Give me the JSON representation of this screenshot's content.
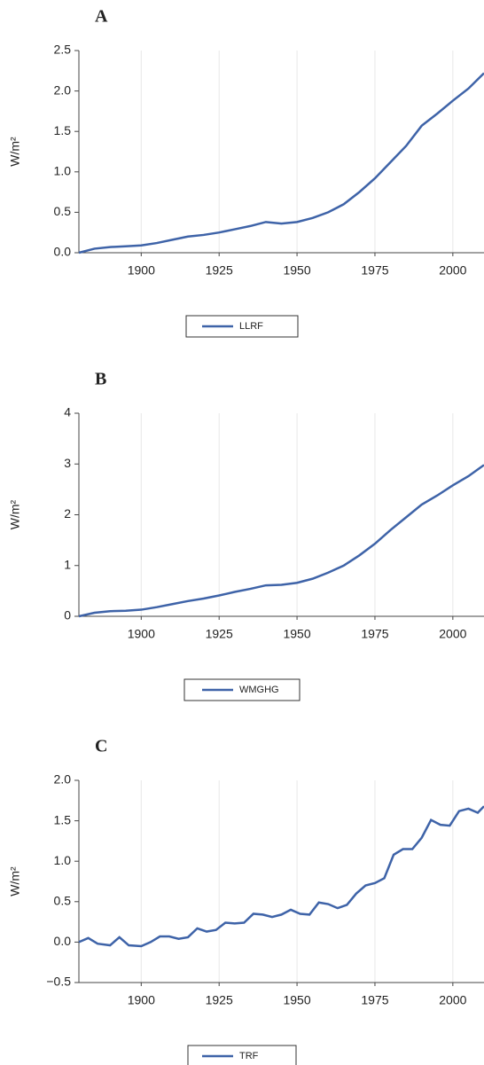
{
  "chart_data": [
    {
      "type": "line",
      "title": "A",
      "y_label": "W/m²",
      "x": [
        1880,
        1885,
        1890,
        1895,
        1900,
        1905,
        1910,
        1915,
        1920,
        1925,
        1930,
        1935,
        1940,
        1945,
        1950,
        1955,
        1960,
        1965,
        1970,
        1975,
        1980,
        1985,
        1990,
        1995,
        2000,
        2005,
        2010
      ],
      "series": [
        {
          "name": "LLRF",
          "color": "#3e63a8",
          "values": [
            0,
            0.05,
            0.07,
            0.08,
            0.09,
            0.12,
            0.16,
            0.2,
            0.22,
            0.25,
            0.29,
            0.33,
            0.38,
            0.36,
            0.38,
            0.43,
            0.5,
            0.6,
            0.75,
            0.92,
            1.12,
            1.32,
            1.57,
            1.72,
            1.88,
            2.03,
            2.22
          ]
        }
      ],
      "xlim": [
        1880,
        2010
      ],
      "xticks": [
        1900,
        1925,
        1950,
        1975,
        2000
      ],
      "ylim": [
        0,
        2.5
      ],
      "yticks": [
        {
          "value": 0,
          "label": "0.0"
        },
        {
          "value": 0.5,
          "label": "0.5"
        },
        {
          "value": 1,
          "label": "1.0"
        },
        {
          "value": 1.5,
          "label": "1.5"
        },
        {
          "value": 2,
          "label": "2.0"
        },
        {
          "value": 2.5,
          "label": "2.5"
        }
      ],
      "grid": true
    },
    {
      "type": "line",
      "title": "B",
      "y_label": "W/m²",
      "x": [
        1880,
        1885,
        1890,
        1895,
        1900,
        1905,
        1910,
        1915,
        1920,
        1925,
        1930,
        1935,
        1940,
        1945,
        1950,
        1955,
        1960,
        1965,
        1970,
        1975,
        1980,
        1985,
        1990,
        1995,
        2000,
        2005,
        2010
      ],
      "series": [
        {
          "name": "WMGHG",
          "color": "#3e63a8",
          "values": [
            0,
            0.07,
            0.1,
            0.11,
            0.13,
            0.18,
            0.24,
            0.3,
            0.35,
            0.41,
            0.48,
            0.54,
            0.61,
            0.62,
            0.66,
            0.74,
            0.86,
            1.0,
            1.2,
            1.43,
            1.7,
            1.95,
            2.2,
            2.38,
            2.58,
            2.76,
            2.98
          ]
        }
      ],
      "xlim": [
        1880,
        2010
      ],
      "xticks": [
        1900,
        1925,
        1950,
        1975,
        2000
      ],
      "ylim": [
        0,
        4
      ],
      "yticks": [
        0,
        1,
        2,
        3,
        4
      ],
      "grid": true
    },
    {
      "type": "line",
      "title": "C",
      "y_label": "W/m²",
      "x": [
        1880,
        1883,
        1886,
        1890,
        1893,
        1896,
        1900,
        1903,
        1906,
        1909,
        1912,
        1915,
        1918,
        1921,
        1924,
        1927,
        1930,
        1933,
        1936,
        1939,
        1942,
        1945,
        1948,
        1951,
        1954,
        1957,
        1960,
        1963,
        1966,
        1969,
        1972,
        1975,
        1978,
        1981,
        1984,
        1987,
        1990,
        1993,
        1996,
        1999,
        2002,
        2005,
        2008,
        2010
      ],
      "series": [
        {
          "name": "TRF",
          "color": "#3e63a8",
          "values": [
            0,
            0.05,
            -0.02,
            -0.04,
            0.06,
            -0.04,
            -0.05,
            0.0,
            0.07,
            0.07,
            0.04,
            0.06,
            0.17,
            0.13,
            0.15,
            0.24,
            0.23,
            0.24,
            0.35,
            0.34,
            0.31,
            0.34,
            0.4,
            0.35,
            0.34,
            0.49,
            0.47,
            0.42,
            0.46,
            0.6,
            0.7,
            0.73,
            0.79,
            1.08,
            1.15,
            1.15,
            1.29,
            1.51,
            1.45,
            1.44,
            1.62,
            1.65,
            1.6,
            1.68
          ]
        }
      ],
      "xlim": [
        1880,
        2010
      ],
      "xticks": [
        1900,
        1925,
        1950,
        1975,
        2000
      ],
      "ylim": [
        -0.5,
        2.0
      ],
      "yticks": [
        {
          "value": -0.5,
          "label": "−0.5"
        },
        {
          "value": 0,
          "label": "0.0"
        },
        {
          "value": 0.5,
          "label": "0.5"
        },
        {
          "value": 1,
          "label": "1.0"
        },
        {
          "value": 1.5,
          "label": "1.5"
        },
        {
          "value": 2,
          "label": "2.0"
        }
      ],
      "grid": true
    }
  ]
}
